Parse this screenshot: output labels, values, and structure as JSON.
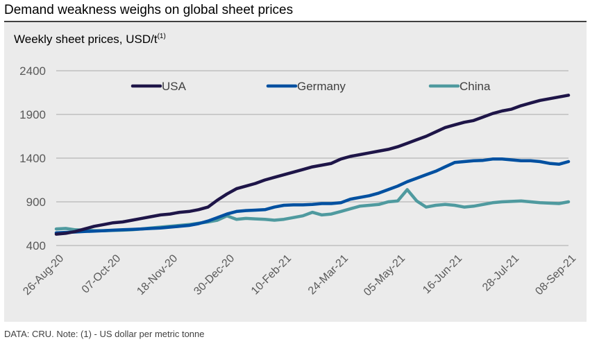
{
  "title": "Demand weakness weighs on global sheet prices",
  "subtitle": "Weekly sheet prices, USD/t",
  "subtitle_sup": "(1)",
  "footnote": "DATA: CRU.  Note: (1) - US dollar per metric tonne",
  "chart_data": {
    "type": "line",
    "title": "Demand weakness weighs on global sheet prices",
    "ylabel": "Weekly sheet prices, USD/t",
    "xlabel": "",
    "ylim": [
      400,
      2400
    ],
    "yticks": [
      400,
      900,
      1400,
      1900,
      2400
    ],
    "xtick_labels": [
      "26-Aug-20",
      "07-Oct-20",
      "18-Nov-20",
      "30-Dec-20",
      "10-Feb-21",
      "24-Mar-21",
      "05-May-21",
      "16-Jun-21",
      "28-Jul-21",
      "08-Sep-21"
    ],
    "xtick_interval_weeks": 6,
    "n_points": 55,
    "grid": true,
    "legend_position": "top",
    "series": [
      {
        "name": "USA",
        "color": "#1e1548",
        "values": [
          530,
          540,
          560,
          590,
          620,
          640,
          660,
          670,
          690,
          710,
          730,
          750,
          760,
          780,
          790,
          810,
          840,
          920,
          990,
          1050,
          1080,
          1110,
          1150,
          1180,
          1210,
          1240,
          1270,
          1300,
          1320,
          1340,
          1390,
          1420,
          1440,
          1460,
          1480,
          1500,
          1530,
          1570,
          1610,
          1650,
          1700,
          1750,
          1780,
          1810,
          1830,
          1870,
          1910,
          1940,
          1960,
          2000,
          2030,
          2060,
          2080,
          2100,
          2120
        ]
      },
      {
        "name": "Germany",
        "color": "#0050a0",
        "values": [
          545,
          550,
          555,
          560,
          565,
          570,
          575,
          580,
          585,
          590,
          595,
          600,
          610,
          620,
          630,
          650,
          680,
          720,
          760,
          790,
          800,
          805,
          810,
          840,
          860,
          865,
          865,
          870,
          880,
          880,
          890,
          930,
          950,
          970,
          1000,
          1040,
          1080,
          1130,
          1170,
          1210,
          1250,
          1300,
          1350,
          1360,
          1370,
          1375,
          1390,
          1390,
          1380,
          1370,
          1370,
          1360,
          1340,
          1330,
          1360
        ]
      },
      {
        "name": "China",
        "color": "#4f9a9f",
        "values": [
          590,
          595,
          580,
          575,
          570,
          570,
          572,
          575,
          580,
          590,
          600,
          610,
          620,
          630,
          640,
          655,
          670,
          690,
          740,
          700,
          710,
          705,
          700,
          690,
          700,
          720,
          740,
          780,
          750,
          760,
          790,
          820,
          850,
          860,
          870,
          900,
          910,
          1040,
          910,
          840,
          860,
          870,
          860,
          840,
          850,
          870,
          890,
          900,
          905,
          910,
          900,
          890,
          885,
          880,
          900
        ]
      }
    ]
  }
}
